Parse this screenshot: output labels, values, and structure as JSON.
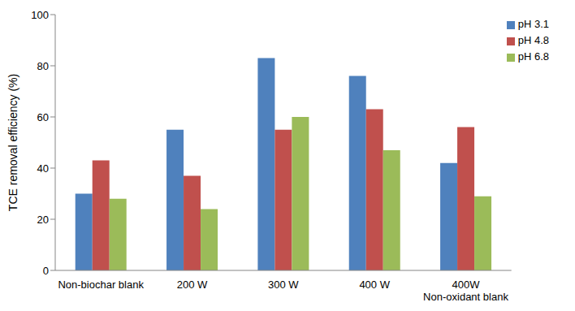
{
  "chart_data": {
    "type": "bar",
    "y_label": "TCE removal efficiency (%)",
    "categories": [
      "Non-biochar blank",
      "200 W",
      "300 W",
      "400 W",
      "400W\nNon-oxidant blank"
    ],
    "series": [
      {
        "name": "pH 3.1",
        "color": "#4f81bd",
        "values": [
          30,
          55,
          83,
          76,
          42
        ]
      },
      {
        "name": "pH 4.8",
        "color": "#c0504d",
        "values": [
          43,
          37,
          55,
          63,
          56
        ]
      },
      {
        "name": "pH 6.8",
        "color": "#9bbb59",
        "values": [
          28,
          24,
          60,
          47,
          29
        ]
      }
    ],
    "ylim": [
      0,
      100
    ],
    "yticks": [
      0,
      20,
      40,
      60,
      80,
      100
    ],
    "grid": false,
    "legend": "upper right"
  }
}
